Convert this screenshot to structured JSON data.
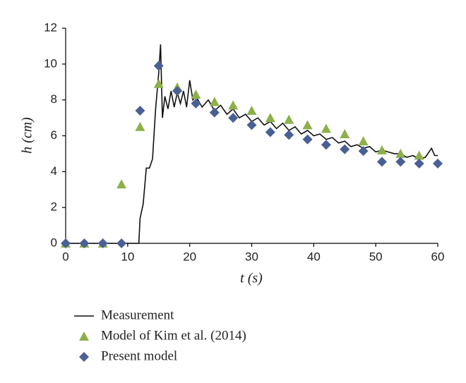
{
  "chart_data": {
    "type": "line",
    "x_label": "t (s)",
    "y_label": "h (cm)",
    "xlim": [
      0,
      60
    ],
    "xticks": [
      0,
      10,
      20,
      30,
      40,
      50,
      60
    ],
    "ylim": [
      0,
      12
    ],
    "yticks": [
      0,
      2,
      4,
      6,
      8,
      10,
      12
    ],
    "grid": false,
    "legend": "bottom",
    "series": [
      {
        "name": "Measurement",
        "color": "#111111",
        "marker": "line",
        "x": [
          0,
          11.8,
          12,
          12.5,
          13,
          13.5,
          14,
          14.5,
          15,
          15.3,
          15.6,
          16,
          16.5,
          17,
          17.5,
          18,
          18.5,
          19,
          19.5,
          20,
          20.5,
          21,
          22,
          23,
          24,
          25,
          26,
          27,
          28,
          29,
          30,
          31,
          32,
          33,
          34,
          35,
          36,
          37,
          38,
          39,
          40,
          41,
          42,
          43,
          44,
          45,
          46,
          47,
          48,
          49,
          50,
          51,
          52,
          53,
          54,
          55,
          56,
          57,
          58,
          59,
          59.5,
          60
        ],
        "values": [
          0,
          0,
          1.4,
          2.2,
          4.2,
          4.2,
          4.7,
          7.5,
          9.5,
          11.1,
          7,
          8.2,
          7.5,
          8.5,
          7.6,
          8.4,
          7.8,
          8.5,
          7.6,
          9.1,
          8,
          8.2,
          7.6,
          8,
          7.4,
          7.7,
          7.2,
          7.5,
          7,
          7.2,
          6.8,
          7,
          6.6,
          6.8,
          6.4,
          6.7,
          6.3,
          6.5,
          6.1,
          6.3,
          6,
          6.1,
          5.8,
          5.9,
          5.6,
          5.7,
          5.4,
          5.5,
          5.3,
          5.4,
          5.1,
          5.2,
          5.1,
          5,
          5,
          4.8,
          4.9,
          4.7,
          4.8,
          5.3,
          4.9,
          4.9
        ]
      },
      {
        "name": "Model of Kim et al. (2014)",
        "color": "#8db04a",
        "marker": "triangle",
        "x": [
          0,
          3,
          6,
          9,
          12,
          15,
          18,
          21,
          24,
          27,
          30,
          33,
          36,
          39,
          42,
          45,
          48,
          51,
          54,
          57
        ],
        "values": [
          0,
          0,
          0,
          3.3,
          6.5,
          8.9,
          8.7,
          8.3,
          7.9,
          7.7,
          7.4,
          7.0,
          6.9,
          6.6,
          6.4,
          6.1,
          5.7,
          5.2,
          5.0,
          4.9
        ]
      },
      {
        "name": "Present model",
        "color": "#4a6094",
        "marker": "diamond",
        "x": [
          0,
          3,
          6,
          9,
          12,
          15,
          18,
          21,
          24,
          27,
          30,
          33,
          36,
          39,
          42,
          45,
          48,
          51,
          54,
          57,
          60
        ],
        "values": [
          0,
          0,
          0,
          0,
          7.4,
          9.9,
          8.5,
          7.8,
          7.3,
          7.0,
          6.6,
          6.2,
          6.05,
          5.8,
          5.5,
          5.25,
          5.15,
          4.55,
          4.55,
          4.45,
          4.45
        ]
      }
    ]
  }
}
